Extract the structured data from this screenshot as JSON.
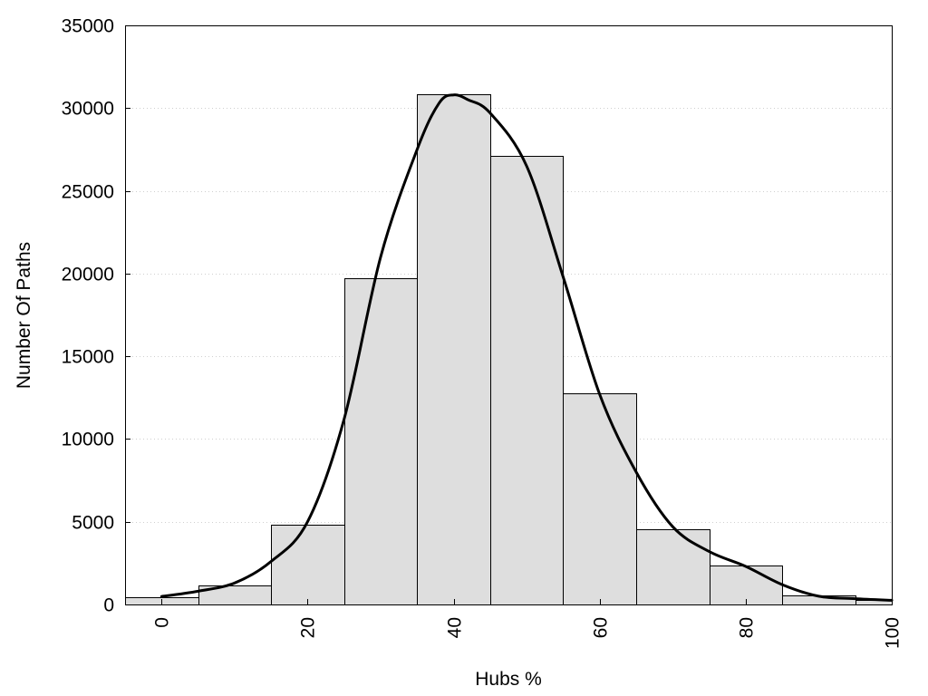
{
  "chart_data": {
    "type": "bar",
    "title": "",
    "xlabel": "Hubs %",
    "ylabel": "Number Of Paths",
    "xlim": [
      -5,
      100
    ],
    "ylim": [
      0,
      35000
    ],
    "x_ticks": [
      0,
      20,
      40,
      60,
      80,
      100
    ],
    "x_tick_labels": [
      "0",
      "20",
      "40",
      "60",
      "80",
      "100"
    ],
    "y_ticks": [
      0,
      5000,
      10000,
      15000,
      20000,
      25000,
      30000,
      35000
    ],
    "y_tick_labels": [
      "0",
      "5000",
      "10000",
      "15000",
      "20000",
      "25000",
      "30000",
      "35000"
    ],
    "grid": "horizontal dotted",
    "legend": "none",
    "bar_color": "#dedede",
    "bars": [
      {
        "x_start": -5,
        "x_end": 5,
        "value": 450
      },
      {
        "x_start": 5,
        "x_end": 15,
        "value": 1150
      },
      {
        "x_start": 15,
        "x_end": 25,
        "value": 4800
      },
      {
        "x_start": 25,
        "x_end": 35,
        "value": 19700
      },
      {
        "x_start": 35,
        "x_end": 45,
        "value": 30850
      },
      {
        "x_start": 45,
        "x_end": 55,
        "value": 27100
      },
      {
        "x_start": 55,
        "x_end": 65,
        "value": 12750
      },
      {
        "x_start": 65,
        "x_end": 75,
        "value": 4550
      },
      {
        "x_start": 75,
        "x_end": 85,
        "value": 2330
      },
      {
        "x_start": 85,
        "x_end": 95,
        "value": 550
      },
      {
        "x_start": 95,
        "x_end": 100,
        "value": 300
      }
    ],
    "density_curve": {
      "x": [
        0,
        5,
        10,
        15,
        20,
        25,
        30,
        35,
        38,
        40,
        42,
        45,
        50,
        55,
        60,
        65,
        70,
        75,
        80,
        85,
        90,
        95,
        100
      ],
      "y": [
        480,
        800,
        1300,
        2600,
        5000,
        11200,
        21000,
        27500,
        30300,
        30800,
        30500,
        29700,
        26500,
        19800,
        12700,
        8000,
        4700,
        3200,
        2300,
        1200,
        500,
        350,
        250
      ]
    }
  }
}
